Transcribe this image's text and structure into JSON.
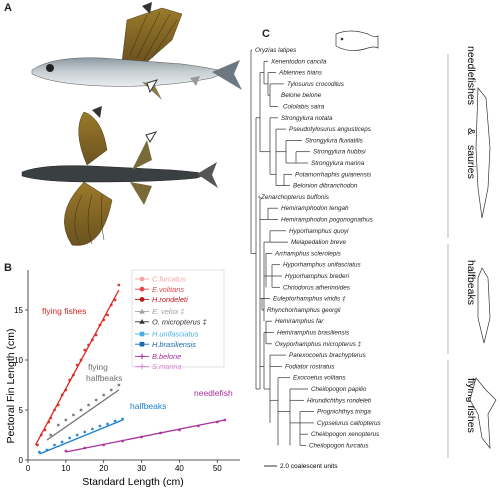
{
  "panels": {
    "a": "A",
    "b": "B",
    "c": "C"
  },
  "panel_b": {
    "chart_data": {
      "type": "scatter",
      "xlabel": "Standard Length (cm)",
      "ylabel": "Pectoral Fin Length (cm)",
      "xlim": [
        0,
        56
      ],
      "ylim": [
        0,
        19
      ],
      "xticks": [
        "0",
        "10",
        "20",
        "30",
        "40",
        "50"
      ],
      "yticks": [
        "0",
        "5",
        "10",
        "15"
      ],
      "annotations": [
        {
          "text": "flying fishes",
          "color": "#d9261c"
        },
        {
          "text": "flying",
          "color": "#707070"
        },
        {
          "text": "halfbeaks",
          "color": "#707070"
        },
        {
          "text": "halfbeaks",
          "color": "#1a7fcf"
        },
        {
          "text": "needlefish",
          "color": "#a7309a"
        }
      ],
      "legend": {
        "placement": "top-right",
        "entries": [
          {
            "name": "C.furcatus",
            "color": "#f5a3a6",
            "marker": "circle"
          },
          {
            "name": "E.volitans",
            "color": "#e8484a",
            "marker": "circle"
          },
          {
            "name": "H.rondeleti",
            "color": "#b8171c",
            "marker": "circle"
          },
          {
            "name": "E. velox ‡",
            "color": "#a0a0a0",
            "marker": "triangle"
          },
          {
            "name": "O. micropterus ‡",
            "color": "#333333",
            "marker": "triangle"
          },
          {
            "name": "H.unifasciatus",
            "color": "#4aaee0",
            "marker": "square"
          },
          {
            "name": "H.brasiliensis",
            "color": "#1668b3",
            "marker": "square"
          },
          {
            "name": "B.belone",
            "color": "#9b2f98",
            "marker": "plus"
          },
          {
            "name": "S.marina",
            "color": "#e07fd9",
            "marker": "plus"
          }
        ]
      },
      "series": [
        {
          "group": "flying fishes",
          "color": "#d9261c",
          "fit": [
            [
              2,
              1.5
            ],
            [
              24,
              17
            ]
          ],
          "points": [
            [
              2.5,
              1.5
            ],
            [
              3.5,
              2.5
            ],
            [
              4.5,
              3
            ],
            [
              5.5,
              3.8
            ],
            [
              6,
              4.2
            ],
            [
              7,
              5
            ],
            [
              8,
              5.5
            ],
            [
              9,
              6.5
            ],
            [
              10,
              7
            ],
            [
              11,
              8
            ],
            [
              12,
              8.5
            ],
            [
              13,
              9.5
            ],
            [
              14,
              10
            ],
            [
              15,
              11
            ],
            [
              16,
              11.5
            ],
            [
              17,
              12
            ],
            [
              18,
              12.5
            ],
            [
              19,
              13.5
            ],
            [
              20,
              14
            ],
            [
              21,
              14.5
            ],
            [
              22,
              15.5
            ],
            [
              23,
              16
            ],
            [
              24,
              17.5
            ]
          ]
        },
        {
          "group": "flying halfbeaks",
          "color": "#707070",
          "fit": [
            [
              5,
              2
            ],
            [
              24,
              7
            ]
          ],
          "points": [
            [
              6,
              2.5
            ],
            [
              8,
              3.5
            ],
            [
              10,
              4
            ],
            [
              12,
              4.5
            ],
            [
              14,
              5
            ],
            [
              16,
              5.5
            ],
            [
              18,
              6
            ],
            [
              20,
              6.5
            ],
            [
              22,
              7
            ],
            [
              24,
              7.5
            ]
          ]
        },
        {
          "group": "halfbeaks",
          "color": "#1a7fcf",
          "fit": [
            [
              3,
              0.6
            ],
            [
              25,
              4
            ]
          ],
          "points": [
            [
              3,
              0.8
            ],
            [
              5,
              1
            ],
            [
              7,
              1.5
            ],
            [
              9,
              1.8
            ],
            [
              11,
              2.2
            ],
            [
              13,
              2.5
            ],
            [
              15,
              2.8
            ],
            [
              17,
              3.1
            ],
            [
              19,
              3.4
            ],
            [
              21,
              3.6
            ],
            [
              23,
              3.9
            ],
            [
              25,
              4.1
            ]
          ]
        },
        {
          "group": "needlefish",
          "color": "#a7309a",
          "fit": [
            [
              10,
              0.8
            ],
            [
              52,
              4
            ]
          ],
          "points": [
            [
              10,
              0.9
            ],
            [
              15,
              1.2
            ],
            [
              20,
              1.5
            ],
            [
              25,
              1.9
            ],
            [
              30,
              2.3
            ],
            [
              35,
              2.7
            ],
            [
              40,
              3.0
            ],
            [
              45,
              3.4
            ],
            [
              50,
              3.8
            ],
            [
              52,
              4.0
            ]
          ]
        }
      ]
    }
  },
  "panel_c": {
    "taxa": [
      "Oryzias latipes",
      "Xenentodon cancila",
      "Ablennes hians",
      "Tylosurus crocodilus",
      "Belone belone",
      "Cololabis saira",
      "Strongylura notata",
      "Pseudotylosurus angusticeps",
      "Strongylura fluviatilis",
      "Strongylura hubbsi",
      "Strongylura marina",
      "Potamorrhaphis guianensis",
      "Belonion dibranchodon",
      "Zenarchopterus buffonis",
      "Hemiramphodon tengah",
      "Hemiramphodon pogonognathus",
      "Hyporhamphus quoyi",
      "Melapedalion breve",
      "Arrhamphus sclerolepis",
      "Hyporhamphus unifasciatus",
      "Hyporhamphus brederi",
      "Chriodorus atherinoides",
      "Euleptorhamphus viridis ‡",
      "Rhynchorhamphus georgii",
      "Hemiramphus far",
      "Hemiramphus brasiliensis",
      "Oxyporhamphus micropterus ‡",
      "Parexocoetus brachypterus",
      "Fodiator rostratus",
      "Exocoetus volitans",
      "Cheilopogon papilio",
      "Hirundichthys rondeleti",
      "Prognichthys tringa",
      "Cypselurus callopterus",
      "Cheilopogon xenopterus",
      "Cheilopogon furcatus"
    ],
    "groups": {
      "needlefishes": "needlefishes",
      "amp": "&",
      "sauries": "sauries",
      "halfbeaks": "halfbeaks",
      "flying_fishes": "flying fishes"
    },
    "scale_label": "2.0 coalescent units"
  },
  "colors": {
    "flying_fishes": "#d9261c",
    "flying_halfbeaks": "#707070",
    "halfbeaks": "#1a7fcf",
    "needlefish": "#a7309a"
  }
}
